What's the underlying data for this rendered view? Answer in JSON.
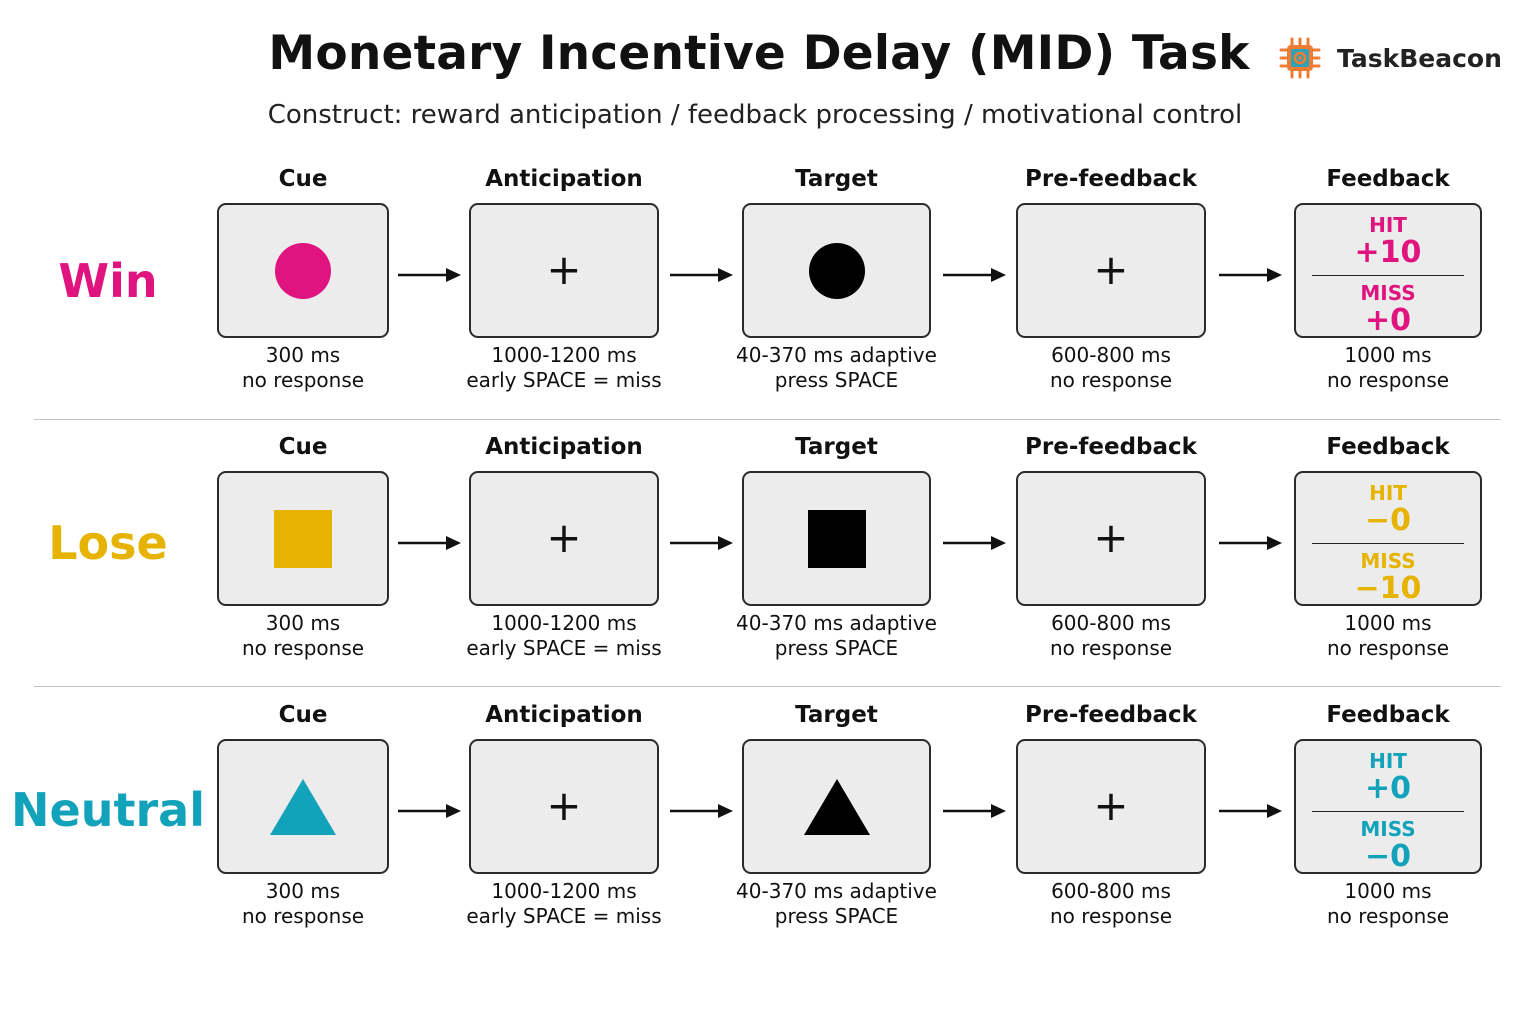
{
  "header": {
    "title": "Monetary Incentive Delay (MID) Task",
    "subtitle": "Construct: reward anticipation / feedback processing / motivational control",
    "brand": "TaskBeacon",
    "logo_icon": "chip-beacon-icon"
  },
  "colors": {
    "win": "#e0147f",
    "lose": "#e6b400",
    "neutral": "#12a3bb",
    "target": "#000000",
    "screen_bg": "#ececec",
    "logo_orange": "#ef7c33",
    "logo_teal": "#2fa3b5"
  },
  "stage_names": {
    "cue": "Cue",
    "anticipation": "Anticipation",
    "target": "Target",
    "prefeedback": "Pre-feedback",
    "feedback": "Feedback"
  },
  "captions": {
    "cue": [
      "300 ms",
      "no response"
    ],
    "anticipation": [
      "1000-1200 ms",
      "early SPACE = miss"
    ],
    "target": [
      "40-370 ms adaptive",
      "press SPACE"
    ],
    "prefeedback": [
      "600-800 ms",
      "no response"
    ],
    "feedback": [
      "1000 ms",
      "no response"
    ]
  },
  "fixation": "+",
  "hit_label": "HIT",
  "miss_label": "MISS",
  "conditions": [
    {
      "label": "Win",
      "shape": "circle",
      "hit_value": "+10",
      "miss_value": "+0"
    },
    {
      "label": "Lose",
      "shape": "square",
      "hit_value": "−0",
      "miss_value": "−10"
    },
    {
      "label": "Neutral",
      "shape": "triangle",
      "hit_value": "+0",
      "miss_value": "−0"
    }
  ]
}
